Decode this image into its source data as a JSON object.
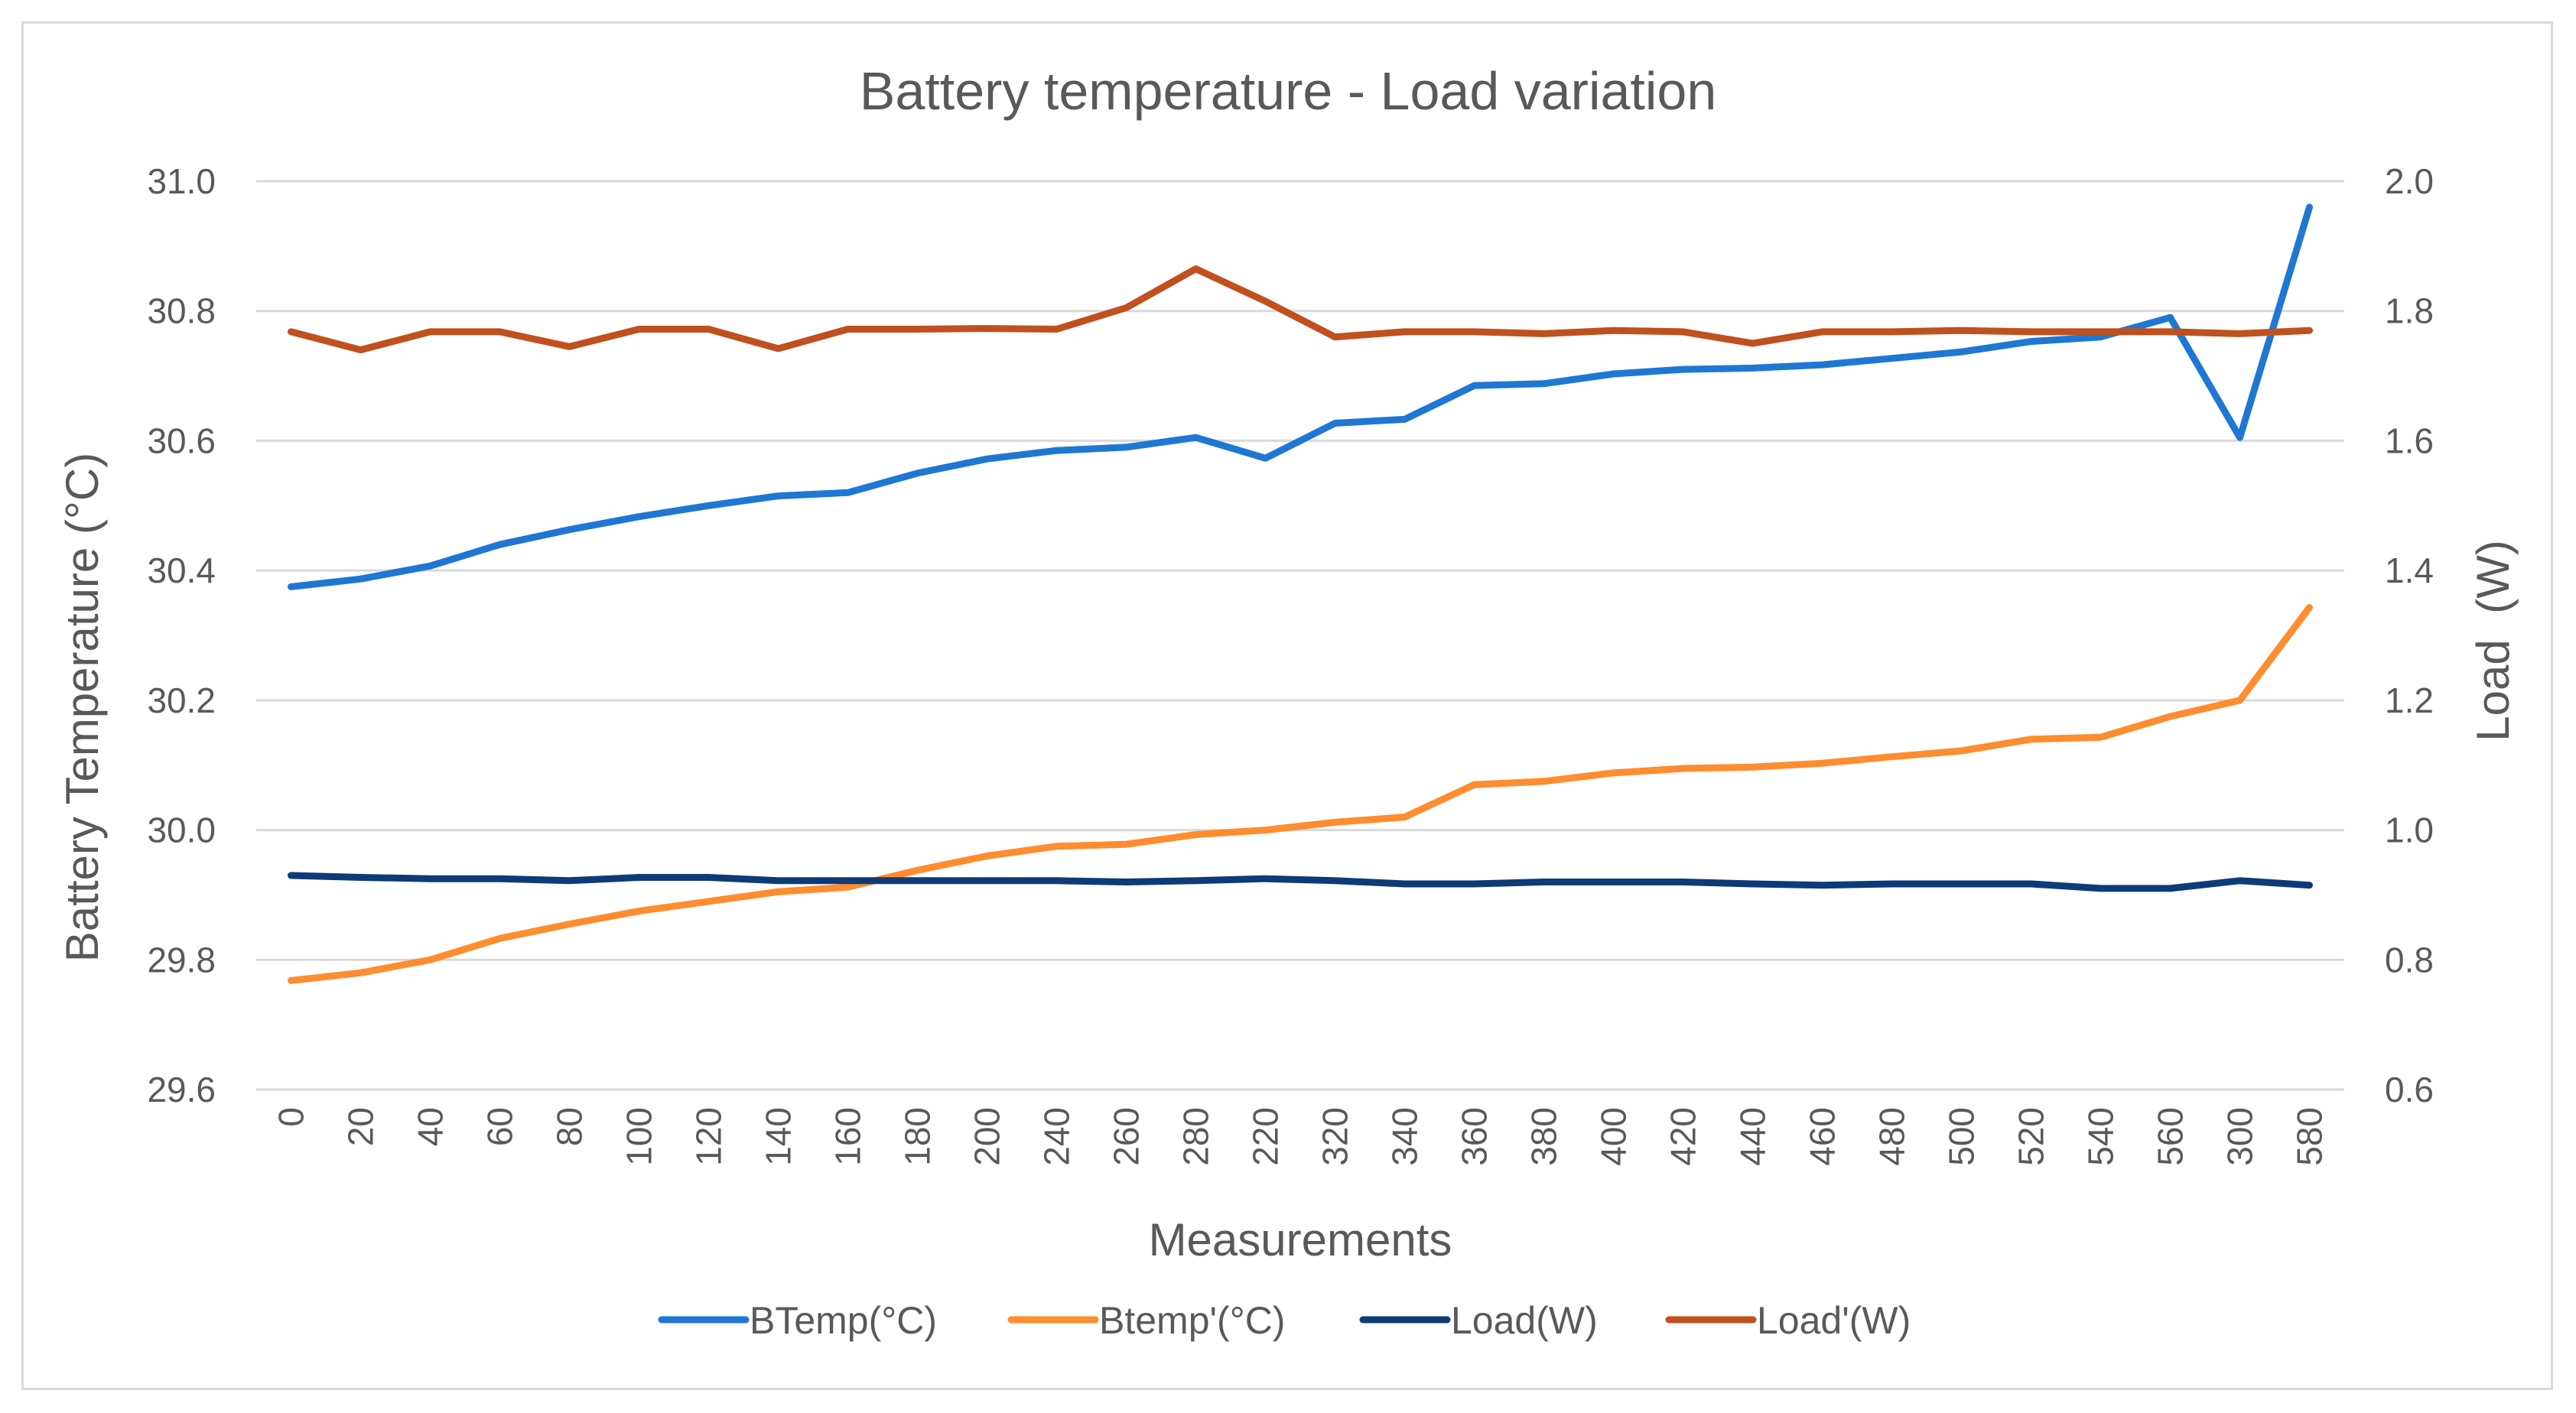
{
  "chart_data": {
    "type": "line",
    "title": "Battery temperature - Load variation",
    "xlabel": "Measurements",
    "ylabel": "Battery Temperature (°C)",
    "y2label": "Load  (W)",
    "categories": [
      "0",
      "20",
      "40",
      "60",
      "80",
      "100",
      "120",
      "140",
      "160",
      "180",
      "200",
      "240",
      "260",
      "280",
      "220",
      "320",
      "340",
      "360",
      "380",
      "400",
      "420",
      "440",
      "460",
      "480",
      "500",
      "520",
      "540",
      "560",
      "300",
      "580"
    ],
    "ylim": [
      29.6,
      31.0
    ],
    "yticks": [
      "29.6",
      "29.8",
      "30.0",
      "30.2",
      "30.4",
      "30.6",
      "30.8",
      "31.0"
    ],
    "y2lim": [
      0.6,
      2.0
    ],
    "y2ticks": [
      "0.6",
      "0.8",
      "1.0",
      "1.2",
      "1.4",
      "1.6",
      "1.8",
      "2.0"
    ],
    "grid": true,
    "legend_position": "bottom",
    "series": [
      {
        "name": "BTemp(°C)",
        "axis": "left",
        "color": "#1f77d4",
        "values": [
          30.375,
          30.387,
          30.407,
          30.44,
          30.463,
          30.483,
          30.5,
          30.515,
          30.52,
          30.55,
          30.572,
          30.585,
          30.59,
          30.605,
          30.573,
          30.627,
          30.633,
          30.685,
          30.688,
          30.703,
          30.71,
          30.712,
          30.717,
          30.727,
          30.737,
          30.753,
          30.76,
          30.79,
          30.605,
          30.96
        ]
      },
      {
        "name": "Btemp'(°C)",
        "axis": "left",
        "color": "#ff8c2e",
        "values": [
          29.768,
          29.78,
          29.8,
          29.833,
          29.855,
          29.875,
          29.89,
          29.905,
          29.912,
          29.938,
          29.96,
          29.975,
          29.978,
          29.993,
          30.0,
          30.012,
          30.02,
          30.07,
          30.075,
          30.088,
          30.095,
          30.097,
          30.103,
          30.113,
          30.122,
          30.14,
          30.143,
          30.175,
          30.2,
          30.343
        ]
      },
      {
        "name": "Load(W)",
        "axis": "right",
        "color": "#0d3b78",
        "values": [
          0.93,
          0.927,
          0.925,
          0.925,
          0.922,
          0.927,
          0.927,
          0.922,
          0.922,
          0.922,
          0.922,
          0.922,
          0.92,
          0.922,
          0.925,
          0.922,
          0.917,
          0.917,
          0.92,
          0.92,
          0.92,
          0.917,
          0.915,
          0.917,
          0.917,
          0.917,
          0.91,
          0.91,
          0.922,
          0.915
        ]
      },
      {
        "name": "Load'(W)",
        "axis": "right",
        "color": "#c0501e",
        "values": [
          1.768,
          1.74,
          1.768,
          1.768,
          1.745,
          1.772,
          1.772,
          1.742,
          1.772,
          1.772,
          1.773,
          1.772,
          1.805,
          1.865,
          1.815,
          1.76,
          1.768,
          1.768,
          1.765,
          1.77,
          1.768,
          1.75,
          1.768,
          1.768,
          1.77,
          1.768,
          1.768,
          1.768,
          1.765,
          1.77
        ]
      }
    ]
  }
}
